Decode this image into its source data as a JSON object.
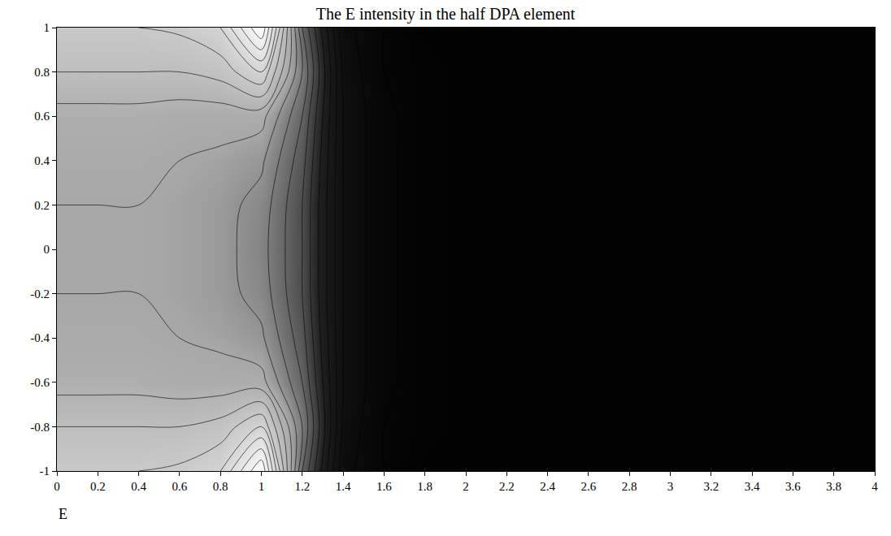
{
  "chart_data": {
    "type": "contour",
    "title": "The E intensity in the half DPA element",
    "x": [
      0,
      0.2,
      0.4,
      0.6,
      0.8,
      1,
      1.2,
      1.4,
      1.6,
      1.8,
      2,
      2.2,
      2.4,
      2.6,
      2.8,
      3,
      3.2,
      3.4,
      3.6,
      3.8,
      4
    ],
    "y": [
      -1,
      -0.8,
      -0.6,
      -0.4,
      -0.2,
      0,
      0.2,
      0.4,
      0.6,
      0.8,
      1
    ],
    "z": [
      [
        0.75,
        0.75,
        0.75,
        0.76,
        0.8,
        1.0,
        0.45,
        0.12,
        0.05,
        0.02,
        0.02,
        0.01,
        0.01,
        0.01,
        0.01,
        0.005,
        0.005,
        0.005,
        0.005,
        0.005,
        0.005
      ],
      [
        0.7,
        0.7,
        0.7,
        0.7,
        0.72,
        0.8,
        0.5,
        0.14,
        0.05,
        0.03,
        0.02,
        0.01,
        0.01,
        0.01,
        0.01,
        0.005,
        0.005,
        0.005,
        0.005,
        0.005,
        0.005
      ],
      [
        0.63,
        0.63,
        0.63,
        0.62,
        0.62,
        0.62,
        0.45,
        0.15,
        0.06,
        0.03,
        0.02,
        0.01,
        0.01,
        0.01,
        0.01,
        0.005,
        0.005,
        0.005,
        0.005,
        0.005,
        0.005
      ],
      [
        0.61,
        0.61,
        0.61,
        0.6,
        0.59,
        0.56,
        0.42,
        0.15,
        0.06,
        0.03,
        0.02,
        0.01,
        0.01,
        0.01,
        0.01,
        0.005,
        0.005,
        0.005,
        0.005,
        0.005,
        0.005
      ],
      [
        0.6,
        0.6,
        0.6,
        0.59,
        0.57,
        0.53,
        0.4,
        0.15,
        0.06,
        0.03,
        0.02,
        0.01,
        0.01,
        0.01,
        0.01,
        0.005,
        0.005,
        0.005,
        0.005,
        0.005,
        0.005
      ],
      [
        0.6,
        0.6,
        0.6,
        0.59,
        0.57,
        0.52,
        0.4,
        0.15,
        0.06,
        0.03,
        0.02,
        0.01,
        0.01,
        0.01,
        0.01,
        0.005,
        0.005,
        0.005,
        0.005,
        0.005,
        0.005
      ],
      [
        0.6,
        0.6,
        0.6,
        0.59,
        0.57,
        0.53,
        0.4,
        0.15,
        0.06,
        0.03,
        0.02,
        0.01,
        0.01,
        0.01,
        0.01,
        0.005,
        0.005,
        0.005,
        0.005,
        0.005,
        0.005
      ],
      [
        0.61,
        0.61,
        0.61,
        0.6,
        0.59,
        0.56,
        0.42,
        0.15,
        0.06,
        0.03,
        0.02,
        0.01,
        0.01,
        0.01,
        0.01,
        0.005,
        0.005,
        0.005,
        0.005,
        0.005,
        0.005
      ],
      [
        0.63,
        0.63,
        0.63,
        0.62,
        0.62,
        0.62,
        0.45,
        0.15,
        0.06,
        0.03,
        0.02,
        0.01,
        0.01,
        0.01,
        0.01,
        0.005,
        0.005,
        0.005,
        0.005,
        0.005,
        0.005
      ],
      [
        0.7,
        0.7,
        0.7,
        0.7,
        0.72,
        0.8,
        0.5,
        0.14,
        0.05,
        0.03,
        0.02,
        0.01,
        0.01,
        0.01,
        0.01,
        0.005,
        0.005,
        0.005,
        0.005,
        0.005,
        0.005
      ],
      [
        0.75,
        0.75,
        0.75,
        0.76,
        0.8,
        1.0,
        0.45,
        0.12,
        0.05,
        0.02,
        0.02,
        0.01,
        0.01,
        0.01,
        0.01,
        0.005,
        0.005,
        0.005,
        0.005,
        0.005,
        0.005
      ]
    ],
    "zlim": [
      0,
      1
    ],
    "xlim": [
      0,
      4
    ],
    "ylim": [
      -1,
      1
    ],
    "xticks": [
      0,
      0.2,
      0.4,
      0.6,
      0.8,
      1,
      1.2,
      1.4,
      1.6,
      1.8,
      2,
      2.2,
      2.4,
      2.6,
      2.8,
      3,
      3.2,
      3.4,
      3.6,
      3.8,
      4
    ],
    "yticks": [
      -1,
      -0.8,
      -0.6,
      -0.4,
      -0.2,
      0,
      0.2,
      0.4,
      0.6,
      0.8,
      1
    ],
    "grid": false,
    "annotations": [
      "E"
    ]
  }
}
